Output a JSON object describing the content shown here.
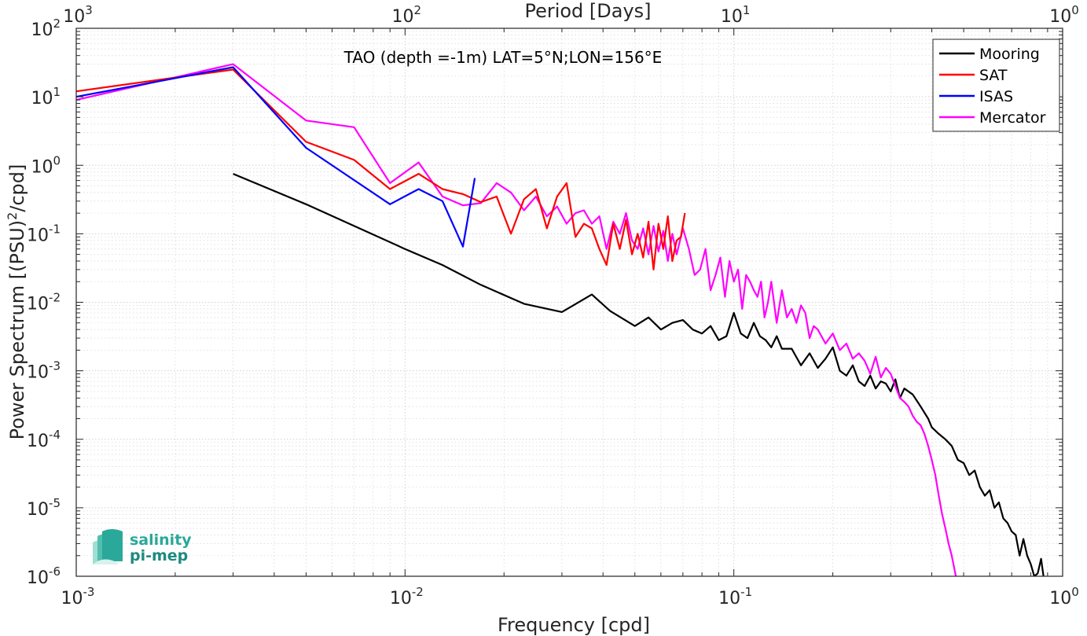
{
  "chart_data": {
    "type": "line",
    "title": "TAO (depth =-1m) LAT=5°N;LON=156°E",
    "xlabel": "Frequency [cpd]",
    "ylabel": "Power Spectrum [(PSU)",
    "ylabel_sup": "2",
    "ylabel_tail": "/cpd]",
    "top_xlabel": "Period [Days]",
    "x_scale": "log",
    "y_scale": "log",
    "xlim": [
      0.001,
      1
    ],
    "ylim": [
      1e-06,
      100
    ],
    "grid": true,
    "minor_grid": true,
    "legend_position": "top-right",
    "x_ticks": [
      {
        "value": 0.001,
        "base": "10",
        "exp": "-3"
      },
      {
        "value": 0.01,
        "base": "10",
        "exp": "-2"
      },
      {
        "value": 0.1,
        "base": "10",
        "exp": "-1"
      },
      {
        "value": 1,
        "base": "10",
        "exp": "0"
      }
    ],
    "y_ticks": [
      {
        "value": 100,
        "base": "10",
        "exp": "2"
      },
      {
        "value": 10,
        "base": "10",
        "exp": "1"
      },
      {
        "value": 1,
        "base": "10",
        "exp": "0"
      },
      {
        "value": 0.1,
        "base": "10",
        "exp": "-1"
      },
      {
        "value": 0.01,
        "base": "10",
        "exp": "-2"
      },
      {
        "value": 0.001,
        "base": "10",
        "exp": "-3"
      },
      {
        "value": 0.0001,
        "base": "10",
        "exp": "-4"
      },
      {
        "value": 1e-05,
        "base": "10",
        "exp": "-5"
      },
      {
        "value": 1e-06,
        "base": "10",
        "exp": "-6"
      }
    ],
    "top_ticks": [
      {
        "value": 1000,
        "base": "10",
        "exp": "3"
      },
      {
        "value": 100,
        "base": "10",
        "exp": "2"
      },
      {
        "value": 10,
        "base": "10",
        "exp": "1"
      },
      {
        "value": 1,
        "base": "10",
        "exp": "0"
      }
    ],
    "series": [
      {
        "name": "Mooring",
        "color": "#000000",
        "x": [
          0.003,
          0.005,
          0.007,
          0.01,
          0.013,
          0.017,
          0.023,
          0.03,
          0.037,
          0.042,
          0.05,
          0.055,
          0.06,
          0.065,
          0.07,
          0.075,
          0.08,
          0.085,
          0.09,
          0.095,
          0.1,
          0.105,
          0.11,
          0.115,
          0.12,
          0.125,
          0.13,
          0.135,
          0.14,
          0.15,
          0.16,
          0.17,
          0.18,
          0.19,
          0.2,
          0.21,
          0.22,
          0.23,
          0.24,
          0.25,
          0.26,
          0.27,
          0.28,
          0.29,
          0.3,
          0.31,
          0.32,
          0.33,
          0.35,
          0.37,
          0.39,
          0.4,
          0.42,
          0.44,
          0.46,
          0.48,
          0.5,
          0.52,
          0.54,
          0.56,
          0.58,
          0.6,
          0.62,
          0.64,
          0.66,
          0.68,
          0.7,
          0.72,
          0.74,
          0.76,
          0.78,
          0.8,
          0.82,
          0.84,
          0.86,
          0.88,
          0.9,
          0.92,
          0.94,
          0.96
        ],
        "y": [
          0.75,
          0.27,
          0.13,
          0.06,
          0.035,
          0.018,
          0.0095,
          0.0072,
          0.013,
          0.0075,
          0.0045,
          0.006,
          0.004,
          0.005,
          0.0055,
          0.004,
          0.0035,
          0.0045,
          0.0028,
          0.0032,
          0.007,
          0.0035,
          0.003,
          0.005,
          0.0032,
          0.0028,
          0.0022,
          0.0032,
          0.0021,
          0.0021,
          0.0012,
          0.0018,
          0.0011,
          0.0015,
          0.0022,
          0.001,
          0.00085,
          0.0012,
          0.0007,
          0.0006,
          0.00085,
          0.00055,
          0.0007,
          0.00065,
          0.0005,
          0.00075,
          0.0004,
          0.00055,
          0.00045,
          0.0003,
          0.0002,
          0.00015,
          0.00012,
          0.0001,
          8e-05,
          5e-05,
          4.5e-05,
          3e-05,
          3.5e-05,
          2e-05,
          1.5e-05,
          1.8e-05,
          1e-05,
          1.2e-05,
          7e-06,
          6e-06,
          4.5e-06,
          4e-06,
          2e-06,
          3.5e-06,
          2e-06,
          1.5e-06,
          1e-06,
          1.1e-06,
          1.8e-06,
          8e-07,
          6e-07,
          5e-07,
          6e-07,
          4e-07
        ]
      },
      {
        "name": "SAT",
        "color": "#ff0000",
        "x": [
          0.001,
          0.003,
          0.005,
          0.007,
          0.009,
          0.011,
          0.013,
          0.015,
          0.017,
          0.019,
          0.021,
          0.023,
          0.025,
          0.027,
          0.029,
          0.031,
          0.033,
          0.035,
          0.037,
          0.039,
          0.041,
          0.043,
          0.045,
          0.047,
          0.049,
          0.051,
          0.053,
          0.055,
          0.057,
          0.059,
          0.061,
          0.063,
          0.065,
          0.067,
          0.069,
          0.071
        ],
        "y": [
          12,
          25,
          2.2,
          1.2,
          0.45,
          0.75,
          0.45,
          0.38,
          0.29,
          0.35,
          0.1,
          0.32,
          0.45,
          0.12,
          0.35,
          0.55,
          0.09,
          0.14,
          0.12,
          0.06,
          0.035,
          0.14,
          0.06,
          0.16,
          0.05,
          0.1,
          0.045,
          0.15,
          0.03,
          0.14,
          0.06,
          0.18,
          0.04,
          0.08,
          0.09,
          0.2
        ]
      },
      {
        "name": "ISAS",
        "color": "#0000ff",
        "x": [
          0.001,
          0.003,
          0.005,
          0.009,
          0.011,
          0.013,
          0.015,
          0.0163
        ],
        "y": [
          10,
          27,
          1.8,
          0.27,
          0.45,
          0.3,
          0.065,
          0.65
        ]
      },
      {
        "name": "Mercator",
        "color": "#ff00ff",
        "x": [
          0.001,
          0.003,
          0.005,
          0.007,
          0.009,
          0.011,
          0.013,
          0.015,
          0.017,
          0.019,
          0.021,
          0.023,
          0.025,
          0.027,
          0.029,
          0.031,
          0.033,
          0.035,
          0.037,
          0.039,
          0.041,
          0.043,
          0.045,
          0.047,
          0.049,
          0.051,
          0.053,
          0.055,
          0.057,
          0.059,
          0.061,
          0.063,
          0.065,
          0.067,
          0.07,
          0.073,
          0.076,
          0.079,
          0.082,
          0.085,
          0.088,
          0.091,
          0.094,
          0.097,
          0.1,
          0.103,
          0.106,
          0.109,
          0.112,
          0.115,
          0.118,
          0.121,
          0.124,
          0.127,
          0.13,
          0.135,
          0.14,
          0.145,
          0.15,
          0.155,
          0.16,
          0.165,
          0.17,
          0.175,
          0.18,
          0.19,
          0.2,
          0.21,
          0.22,
          0.23,
          0.24,
          0.25,
          0.26,
          0.27,
          0.28,
          0.29,
          0.3,
          0.31,
          0.32,
          0.33,
          0.34,
          0.35,
          0.36,
          0.37,
          0.38,
          0.39,
          0.4,
          0.41,
          0.42,
          0.43,
          0.44,
          0.45,
          0.46,
          0.47,
          0.48,
          0.49
        ],
        "y": [
          9,
          30,
          4.5,
          3.6,
          0.55,
          1.1,
          0.35,
          0.26,
          0.28,
          0.55,
          0.4,
          0.22,
          0.35,
          0.18,
          0.25,
          0.14,
          0.2,
          0.22,
          0.14,
          0.18,
          0.06,
          0.15,
          0.1,
          0.2,
          0.08,
          0.06,
          0.12,
          0.05,
          0.13,
          0.055,
          0.11,
          0.04,
          0.1,
          0.05,
          0.12,
          0.06,
          0.025,
          0.03,
          0.06,
          0.015,
          0.025,
          0.045,
          0.012,
          0.04,
          0.02,
          0.03,
          0.008,
          0.025,
          0.02,
          0.015,
          0.012,
          0.02,
          0.006,
          0.01,
          0.02,
          0.005,
          0.015,
          0.006,
          0.008,
          0.005,
          0.009,
          0.007,
          0.003,
          0.0045,
          0.004,
          0.0025,
          0.0035,
          0.002,
          0.0025,
          0.0015,
          0.0018,
          0.0014,
          0.0009,
          0.0016,
          0.0008,
          0.0011,
          0.0009,
          0.0006,
          0.0004,
          0.00035,
          0.0003,
          0.00022,
          0.00018,
          0.00016,
          0.00012,
          8e-05,
          5e-05,
          3e-05,
          1.5e-05,
          8e-06,
          5e-06,
          3e-06,
          2e-06,
          1.2e-06,
          7e-07,
          4e-07
        ]
      }
    ]
  },
  "logo": {
    "line1": "salinity",
    "line2": "pi-mep",
    "color": "#2aa899"
  }
}
